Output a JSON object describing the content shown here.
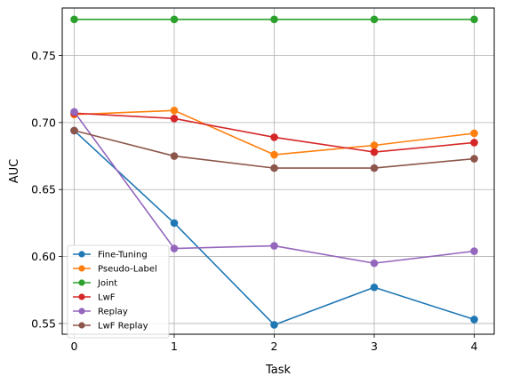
{
  "chart_data": {
    "type": "line",
    "title": "",
    "xlabel": "Task",
    "ylabel": "AUC",
    "x": [
      0,
      1,
      2,
      3,
      4
    ],
    "xlim": [
      -0.12,
      4.2
    ],
    "ylim": [
      0.542,
      0.7855
    ],
    "xticks": [
      "0",
      "1",
      "2",
      "3",
      "4"
    ],
    "yticks": [
      0.55,
      0.6,
      0.65,
      0.7,
      0.75
    ],
    "ytick_labels": [
      "0.55",
      "0.60",
      "0.65",
      "0.70",
      "0.75"
    ],
    "grid": true,
    "legend_position": "lower-left",
    "series": [
      {
        "name": "Fine-Tuning",
        "color": "#1f77b4",
        "values": [
          0.694,
          0.625,
          0.549,
          0.577,
          0.553
        ]
      },
      {
        "name": "Pseudo-Label",
        "color": "#ff7f0e",
        "values": [
          0.706,
          0.709,
          0.676,
          0.683,
          0.692
        ]
      },
      {
        "name": "Joint",
        "color": "#2ca02c",
        "values": [
          0.777,
          0.777,
          0.777,
          0.777,
          0.777
        ]
      },
      {
        "name": "LwF",
        "color": "#d62728",
        "values": [
          0.707,
          0.703,
          0.689,
          0.678,
          0.685
        ]
      },
      {
        "name": "Replay",
        "color": "#9467bd",
        "values": [
          0.708,
          0.606,
          0.608,
          0.595,
          0.604
        ]
      },
      {
        "name": "LwF Replay",
        "color": "#8c564b",
        "values": [
          0.694,
          0.675,
          0.666,
          0.666,
          0.673
        ]
      }
    ]
  }
}
